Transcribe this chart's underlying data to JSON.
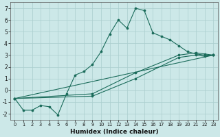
{
  "xlabel": "Humidex (Indice chaleur)",
  "bg_color": "#cce8e8",
  "line_color": "#1a6b5a",
  "grid_color": "#aacece",
  "xlim": [
    -0.5,
    23.5
  ],
  "ylim": [
    -2.5,
    7.5
  ],
  "yticks": [
    -2,
    -1,
    0,
    1,
    2,
    3,
    4,
    5,
    6,
    7
  ],
  "xticks": [
    0,
    1,
    2,
    3,
    4,
    5,
    6,
    7,
    8,
    9,
    10,
    11,
    12,
    13,
    14,
    15,
    16,
    17,
    18,
    19,
    20,
    21,
    22,
    23
  ],
  "series": [
    {
      "x": [
        0,
        1,
        2,
        3,
        4,
        5,
        6,
        7,
        8,
        9,
        10,
        11,
        12,
        13,
        14,
        15,
        16,
        17,
        18,
        19,
        20,
        21,
        22,
        23
      ],
      "y": [
        -0.7,
        -1.7,
        -1.7,
        -1.3,
        -1.4,
        -2.1,
        -0.3,
        1.3,
        1.6,
        2.2,
        3.3,
        4.8,
        6.0,
        5.3,
        7.0,
        6.8,
        4.9,
        4.6,
        4.3,
        3.8,
        3.3,
        3.1,
        3.0,
        3.0
      ]
    },
    {
      "x": [
        0,
        23
      ],
      "y": [
        -0.7,
        3.0
      ],
      "no_marker": true
    },
    {
      "x": [
        0,
        9,
        14,
        19,
        21,
        22,
        23
      ],
      "y": [
        -0.7,
        -0.3,
        1.5,
        3.0,
        3.2,
        3.1,
        3.0
      ]
    },
    {
      "x": [
        0,
        9,
        14,
        19,
        21,
        22,
        23
      ],
      "y": [
        -0.7,
        -0.5,
        1.0,
        2.8,
        3.0,
        2.9,
        3.0
      ]
    }
  ]
}
